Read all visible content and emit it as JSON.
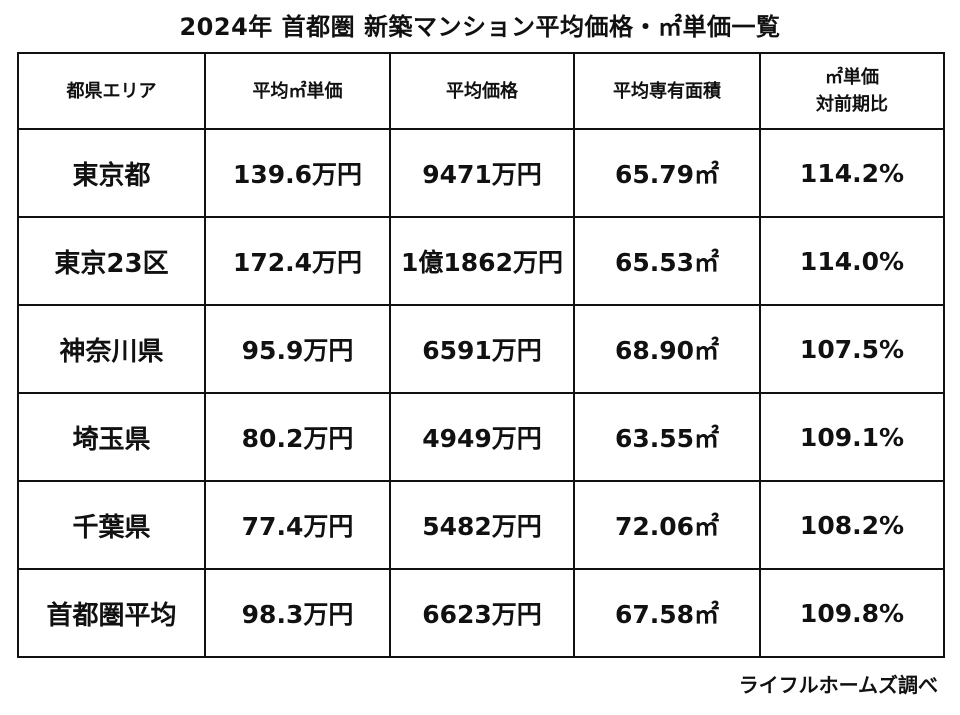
{
  "title": "2024年 首都圏 新築マンション平均価格・㎡単価一覧",
  "table": {
    "headers": {
      "area": "都県エリア",
      "avg_unit_price": "平均㎡単価",
      "avg_price": "平均価格",
      "avg_floor_area": "平均専有面積",
      "unit_price_yoy_line1": "㎡単価",
      "unit_price_yoy_line2": "対前期比"
    },
    "rows": [
      {
        "area": "東京都",
        "avg_unit_price": "139.6万円",
        "avg_price": "9471万円",
        "avg_floor_area": "65.79㎡",
        "yoy": "114.2%"
      },
      {
        "area": "東京23区",
        "avg_unit_price": "172.4万円",
        "avg_price": "1億1862万円",
        "avg_floor_area": "65.53㎡",
        "yoy": "114.0%"
      },
      {
        "area": "神奈川県",
        "avg_unit_price": "95.9万円",
        "avg_price": "6591万円",
        "avg_floor_area": "68.90㎡",
        "yoy": "107.5%"
      },
      {
        "area": "埼玉県",
        "avg_unit_price": "80.2万円",
        "avg_price": "4949万円",
        "avg_floor_area": "63.55㎡",
        "yoy": "109.1%"
      },
      {
        "area": "千葉県",
        "avg_unit_price": "77.4万円",
        "avg_price": "5482万円",
        "avg_floor_area": "72.06㎡",
        "yoy": "108.2%"
      },
      {
        "area": "首都圏平均",
        "avg_unit_price": "98.3万円",
        "avg_price": "6623万円",
        "avg_floor_area": "67.58㎡",
        "yoy": "109.8%"
      }
    ]
  },
  "source": "ライフルホームズ調べ"
}
